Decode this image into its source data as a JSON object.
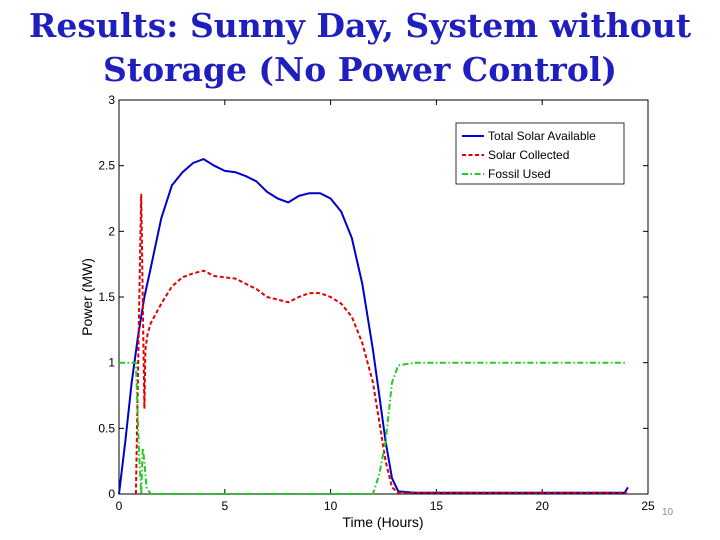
{
  "slide": {
    "title_line1": "Results: Sunny Day, System without",
    "title_line2": "Storage (No Power Control)",
    "page_number": "10"
  },
  "chart_data": {
    "type": "line",
    "title": "",
    "xlabel": "Time (Hours)",
    "ylabel": "Power (MW)",
    "xlim": [
      0,
      25
    ],
    "ylim": [
      0,
      3
    ],
    "xticks": [
      0,
      5,
      10,
      15,
      20,
      25
    ],
    "yticks": [
      0,
      0.5,
      1,
      1.5,
      2,
      2.5,
      3
    ],
    "xtick_labels": [
      "0",
      "5",
      "10",
      "15",
      "20",
      "25"
    ],
    "ytick_labels": [
      "0",
      "0.5",
      "1",
      "1.5",
      "2",
      "2.5",
      "3"
    ],
    "grid": false,
    "legend_position": "top-right",
    "series": [
      {
        "name": "Total Solar Available",
        "color": "#0000cc",
        "style": "solid",
        "x": [
          0,
          0.3,
          0.6,
          0.9,
          1.2,
          1.5,
          2,
          2.5,
          3,
          3.5,
          4,
          4.5,
          5,
          5.5,
          6,
          6.5,
          7,
          7.5,
          8,
          8.5,
          9,
          9.5,
          10,
          10.5,
          11,
          11.5,
          12,
          12.3,
          12.6,
          12.9,
          13.2,
          14,
          18,
          23.9,
          24.05
        ],
        "y": [
          0,
          0.4,
          0.85,
          1.2,
          1.5,
          1.72,
          2.1,
          2.35,
          2.45,
          2.52,
          2.55,
          2.5,
          2.46,
          2.45,
          2.42,
          2.38,
          2.3,
          2.25,
          2.22,
          2.27,
          2.29,
          2.29,
          2.25,
          2.15,
          1.95,
          1.6,
          1.1,
          0.75,
          0.4,
          0.12,
          0.02,
          0.01,
          0.01,
          0.01,
          0.05
        ]
      },
      {
        "name": "Solar Collected",
        "color": "#e00000",
        "style": "dashed",
        "x": [
          0.8,
          0.95,
          1.05,
          1.15,
          1.2,
          1.25,
          1.35,
          1.5,
          2,
          2.5,
          3,
          3.5,
          4,
          4.5,
          5,
          5.5,
          6,
          6.5,
          7,
          7.5,
          8,
          8.5,
          9,
          9.5,
          10,
          10.5,
          11,
          11.5,
          12,
          12.3,
          12.6,
          12.9,
          13.2,
          14,
          18,
          24
        ],
        "y": [
          0,
          1.4,
          2.28,
          1.2,
          0.65,
          1.1,
          1.22,
          1.3,
          1.45,
          1.58,
          1.65,
          1.68,
          1.7,
          1.66,
          1.65,
          1.64,
          1.6,
          1.56,
          1.5,
          1.48,
          1.46,
          1.5,
          1.53,
          1.53,
          1.5,
          1.45,
          1.35,
          1.15,
          0.85,
          0.55,
          0.25,
          0.05,
          0.01,
          0.01,
          0.01,
          0.01
        ]
      },
      {
        "name": "Fossil Used",
        "color": "#22cc22",
        "style": "dashdot",
        "x": [
          0,
          0.8,
          0.95,
          1.05,
          1.12,
          1.2,
          1.3,
          1.5,
          3,
          8,
          12,
          12.3,
          12.6,
          12.9,
          13.2,
          14,
          20,
          24
        ],
        "y": [
          1,
          1,
          0.3,
          0,
          0.35,
          0.25,
          0.05,
          0,
          0,
          0,
          0,
          0.15,
          0.4,
          0.85,
          0.98,
          1,
          1,
          1
        ]
      }
    ]
  }
}
